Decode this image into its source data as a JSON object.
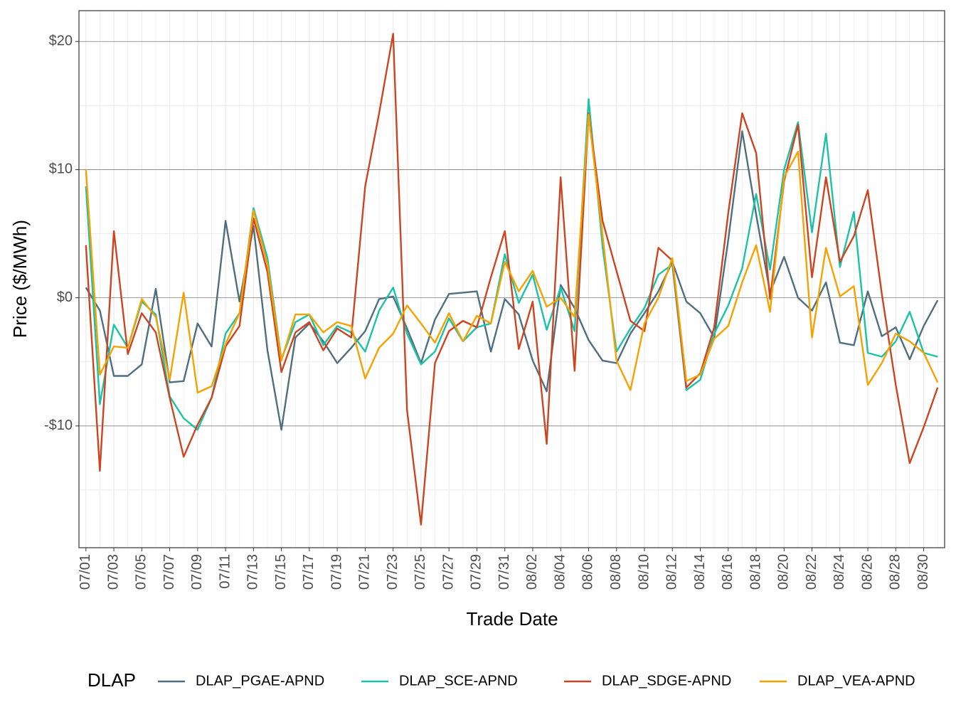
{
  "chart_data": {
    "type": "line",
    "x_label": "Trade Date",
    "y_label": "Price ($/MWh)",
    "legend_title": "DLAP",
    "legend_position": "bottom",
    "grid": true,
    "categories": [
      "07/01",
      null,
      "07/03",
      null,
      "07/05",
      null,
      "07/07",
      null,
      "07/09",
      null,
      "07/11",
      null,
      "07/13",
      null,
      "07/15",
      null,
      "07/17",
      null,
      "07/19",
      null,
      "07/21",
      null,
      "07/23",
      null,
      "07/25",
      null,
      "07/27",
      null,
      "07/29",
      null,
      "07/31",
      null,
      "08/02",
      null,
      "08/04",
      null,
      "08/06",
      null,
      "08/08",
      null,
      "08/10",
      null,
      "08/12",
      null,
      "08/14",
      null,
      "08/16",
      null,
      "08/18",
      null,
      "08/20",
      null,
      "08/22",
      null,
      "08/24",
      null,
      "08/26",
      null,
      "08/28",
      null,
      "08/30",
      null
    ],
    "ylim": [
      -19.5,
      22.4
    ],
    "yticks": [
      {
        "value": -10,
        "label": "-$10"
      },
      {
        "value": 0,
        "label": "$0"
      },
      {
        "value": 10,
        "label": "$10"
      },
      {
        "value": 20,
        "label": "$20"
      }
    ],
    "minor_yticks": [
      -15,
      -5,
      5,
      15
    ],
    "series": [
      {
        "name": "DLAP_PGAE-APND",
        "color": "#4f6f80",
        "values": [
          0.8,
          -1.0,
          -6.1,
          -6.1,
          -5.2,
          0.7,
          -6.6,
          -6.5,
          -2.0,
          -3.8,
          6.0,
          -0.3,
          5.6,
          -4.1,
          -10.3,
          -3.1,
          -2.0,
          -3.4,
          -5.1,
          -3.9,
          -2.6,
          -0.1,
          0.1,
          -2.4,
          -5.1,
          -1.7,
          0.3,
          0.4,
          0.5,
          -4.2,
          -0.1,
          -1.3,
          -4.9,
          -7.3,
          1.0,
          -0.8,
          -3.3,
          -4.9,
          -5.1,
          -2.8,
          -1.2,
          0.5,
          2.8,
          -0.3,
          -1.2,
          -3.1,
          4.5,
          13.0,
          6.5,
          0.4,
          3.2,
          0.0,
          -1.0,
          1.2,
          -3.5,
          -3.7,
          0.5,
          -3.0,
          -2.3,
          -4.8,
          -2.2,
          -0.2
        ]
      },
      {
        "name": "DLAP_SCE-APND",
        "color": "#1bc2a6",
        "values": [
          8.7,
          -8.3,
          -2.1,
          -3.9,
          -0.3,
          -1.3,
          -7.7,
          -9.4,
          -10.3,
          -7.8,
          -2.8,
          -1.2,
          7.0,
          3.1,
          -4.8,
          -1.9,
          -1.3,
          -3.7,
          -2.2,
          -2.7,
          -4.2,
          -1.0,
          0.8,
          -2.8,
          -5.2,
          -4.2,
          -1.6,
          -3.4,
          -2.3,
          -2.0,
          3.4,
          -0.4,
          1.8,
          -2.5,
          0.8,
          -2.6,
          15.5,
          4.0,
          -4.2,
          -2.4,
          -0.8,
          1.8,
          2.6,
          -7.2,
          -6.4,
          -2.8,
          -0.6,
          2.3,
          8.1,
          2.2,
          10.0,
          13.7,
          5.1,
          12.8,
          2.4,
          6.7,
          -4.3,
          -4.6,
          -3.4,
          -1.1,
          -4.3,
          -4.6
        ]
      },
      {
        "name": "DLAP_SDGE-APND",
        "color": "#cc4520",
        "values": [
          4.1,
          -13.5,
          5.2,
          -4.4,
          -1.2,
          -2.7,
          -7.8,
          -12.4,
          -9.9,
          -7.8,
          -3.8,
          -2.2,
          6.2,
          2.0,
          -5.8,
          -2.7,
          -1.9,
          -4.1,
          -2.4,
          -3.1,
          8.7,
          14.4,
          20.6,
          -8.8,
          -17.7,
          -5.1,
          -2.6,
          -1.8,
          -2.3,
          1.6,
          5.2,
          -4.0,
          -0.3,
          -11.4,
          9.4,
          -5.7,
          14.4,
          6.0,
          2.1,
          -1.8,
          -2.6,
          3.9,
          2.9,
          -7.0,
          -5.9,
          -2.3,
          6.6,
          14.4,
          11.3,
          -0.1,
          9.1,
          13.5,
          1.6,
          9.4,
          2.8,
          4.8,
          8.4,
          0.3,
          -6.8,
          -12.9,
          -10.1,
          -7.0
        ]
      },
      {
        "name": "DLAP_VEA-APND",
        "color": "#f5a200",
        "values": [
          10.0,
          -6.0,
          -3.8,
          -3.9,
          -0.1,
          -1.5,
          -6.4,
          0.4,
          -7.4,
          -6.9,
          -3.6,
          -1.2,
          6.8,
          2.6,
          -4.9,
          -1.3,
          -1.3,
          -2.7,
          -1.9,
          -2.2,
          -6.3,
          -3.9,
          -2.8,
          -0.6,
          -2.0,
          -3.5,
          -1.2,
          -3.4,
          -1.4,
          -2.0,
          2.8,
          0.5,
          2.1,
          -0.7,
          0.0,
          -1.5,
          14.3,
          4.9,
          -4.9,
          -7.2,
          -2.0,
          0.0,
          3.1,
          -6.5,
          -6.0,
          -3.2,
          -2.2,
          1.2,
          4.1,
          -1.1,
          9.4,
          11.4,
          -3.1,
          3.9,
          0.1,
          0.9,
          -6.8,
          -5.1,
          -2.8,
          -3.4,
          -4.3,
          -6.6
        ]
      }
    ]
  }
}
